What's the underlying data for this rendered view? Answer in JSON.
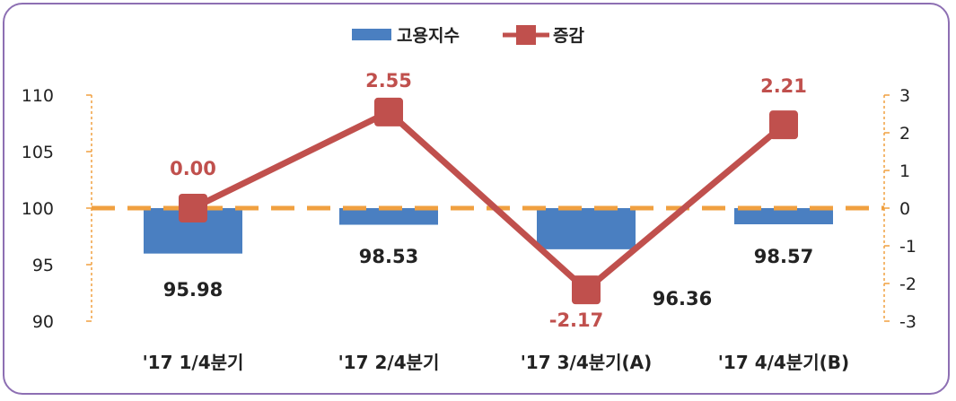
{
  "chart_data": {
    "type": "bar+line",
    "categories": [
      "'17 1/4분기",
      "'17 2/4분기",
      "'17 3/4분기(A)",
      "'17 4/4분기(B)"
    ],
    "series": [
      {
        "name": "고용지수",
        "type": "bar",
        "axis": "left",
        "values": [
          95.98,
          98.53,
          96.36,
          98.57
        ],
        "color": "#4a7fc1"
      },
      {
        "name": "증감",
        "type": "line",
        "axis": "right",
        "values": [
          0.0,
          2.55,
          -2.17,
          2.21
        ],
        "color": "#c0504d"
      }
    ],
    "bar_labels": [
      "95.98",
      "98.53",
      "96.36",
      "98.57"
    ],
    "line_labels": [
      "0.00",
      "2.55",
      "-2.17",
      "2.21"
    ],
    "left_axis": {
      "ylim": [
        90,
        110
      ],
      "ticks": [
        "90",
        "95",
        "100",
        "105",
        "110"
      ]
    },
    "right_axis": {
      "ylim": [
        -3,
        3
      ],
      "ticks": [
        "-3",
        "-2",
        "-1",
        "0",
        "1",
        "2",
        "3"
      ]
    },
    "reference_line": {
      "value": 100,
      "color": "#f0a040",
      "style": "dashed"
    },
    "axis_color": "#f0a040",
    "line_label_color": "#c0504d",
    "legend": {
      "position": "top-center"
    },
    "grid": false
  }
}
